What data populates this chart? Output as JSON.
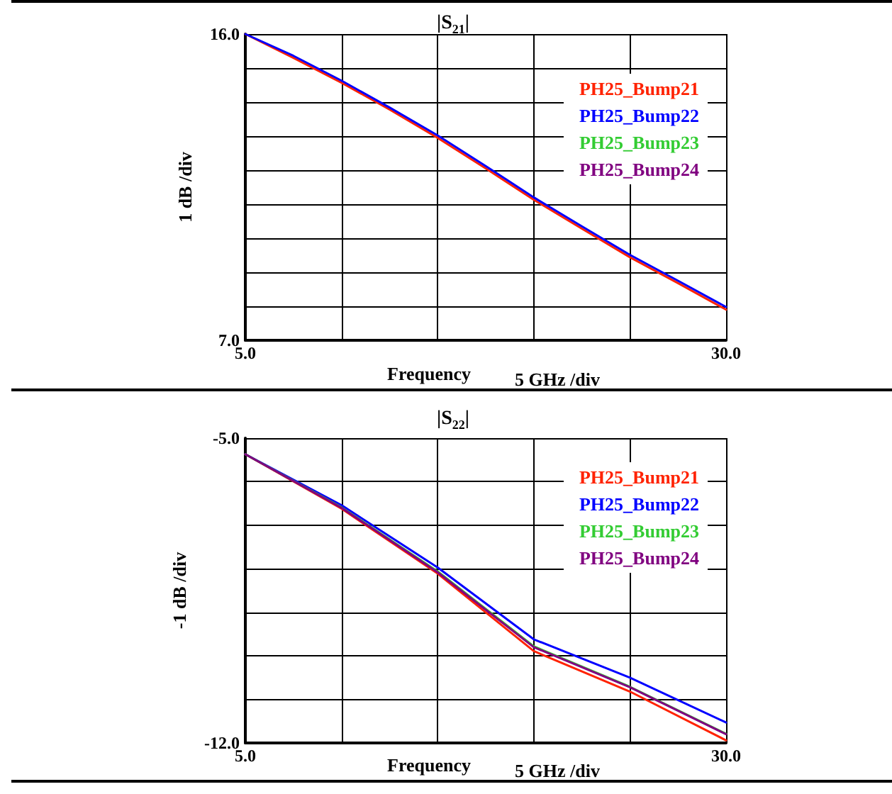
{
  "chart_data": [
    {
      "type": "line",
      "title": "|S$_{21}$|",
      "xlabel": "Frequency",
      "ylabel": "1 dB /div",
      "annotations": [
        "5 GHz /div"
      ],
      "x": [
        5,
        7.5,
        10,
        12.5,
        15,
        17.5,
        20,
        22.5,
        25,
        27.5,
        30
      ],
      "series": [
        {
          "name": "PH25_Bump21",
          "color": "#ff2200",
          "values": [
            16,
            15.3,
            14.57,
            13.78,
            12.95,
            12.05,
            11.13,
            10.28,
            9.44,
            8.68,
            7.9
          ]
        },
        {
          "name": "PH25_Bump22",
          "color": "#0000ff",
          "values": [
            16,
            15.36,
            14.63,
            13.84,
            13.02,
            12.12,
            11.2,
            10.35,
            9.51,
            8.75,
            7.98
          ]
        },
        {
          "name": "PH25_Bump23",
          "color": "#33cc33",
          "values": [
            null,
            null,
            null,
            null,
            null,
            null,
            null,
            null,
            null,
            null,
            null
          ]
        },
        {
          "name": "PH25_Bump24",
          "color": "#800080",
          "values": [
            null,
            null,
            null,
            null,
            null,
            null,
            null,
            null,
            null,
            null,
            null
          ]
        }
      ],
      "xlim": [
        5,
        30
      ],
      "xticks": [
        {
          "value": 5,
          "label": "5.0"
        },
        {
          "value": 10,
          "label": null
        },
        {
          "value": 15,
          "label": null
        },
        {
          "value": 20,
          "label": null
        },
        {
          "value": 25,
          "label": null
        },
        {
          "value": 30,
          "label": "30.0"
        }
      ],
      "ylim": [
        7,
        16
      ],
      "yticks": [
        {
          "value": 7,
          "label": "7.0"
        },
        {
          "value": 8,
          "label": null
        },
        {
          "value": 9,
          "label": null
        },
        {
          "value": 10,
          "label": null
        },
        {
          "value": 11,
          "label": null
        },
        {
          "value": 12,
          "label": null
        },
        {
          "value": 13,
          "label": null
        },
        {
          "value": 14,
          "label": null
        },
        {
          "value": 15,
          "label": null
        },
        {
          "value": 16,
          "label": "16.0"
        }
      ],
      "grid": true,
      "legend": "top right",
      "marker": "none",
      "line_style": "solid"
    },
    {
      "type": "line",
      "title": "|S$_{22}$|",
      "xlabel": "Frequency",
      "ylabel": "-1 dB /div",
      "annotations": [
        "5 GHz /div"
      ],
      "x": [
        5,
        10,
        15,
        20,
        25,
        30
      ],
      "series": [
        {
          "name": "PH25_Bump21",
          "color": "#ff2200",
          "values": [
            -5.37,
            -6.62,
            -8.11,
            -9.89,
            -10.82,
            -11.94
          ]
        },
        {
          "name": "PH25_Bump22",
          "color": "#0000ff",
          "values": [
            -5.37,
            -6.54,
            -7.97,
            -9.62,
            -10.5,
            -11.53
          ]
        },
        {
          "name": "PH25_Bump23",
          "color": "#33cc33",
          "values": [
            -5.37,
            -6.59,
            -8.06,
            -9.78,
            -10.71,
            -11.79
          ]
        },
        {
          "name": "PH25_Bump24",
          "color": "#800080",
          "values": [
            -5.37,
            -6.6,
            -8.08,
            -9.8,
            -10.72,
            -11.8
          ]
        }
      ],
      "xlim": [
        5,
        30
      ],
      "xticks": [
        {
          "value": 5,
          "label": "5.0"
        },
        {
          "value": 10,
          "label": null
        },
        {
          "value": 15,
          "label": null
        },
        {
          "value": 20,
          "label": null
        },
        {
          "value": 25,
          "label": null
        },
        {
          "value": 30,
          "label": "30.0"
        }
      ],
      "ylim": [
        -12,
        -5
      ],
      "yticks": [
        {
          "value": -12,
          "label": "-12.0"
        },
        {
          "value": -11,
          "label": null
        },
        {
          "value": -10,
          "label": null
        },
        {
          "value": -9,
          "label": null
        },
        {
          "value": -8,
          "label": null
        },
        {
          "value": -7,
          "label": null
        },
        {
          "value": -6,
          "label": null
        },
        {
          "value": -5,
          "label": "-5.0"
        }
      ],
      "grid": true,
      "legend": "top right",
      "marker": "none",
      "line_style": "solid"
    }
  ]
}
